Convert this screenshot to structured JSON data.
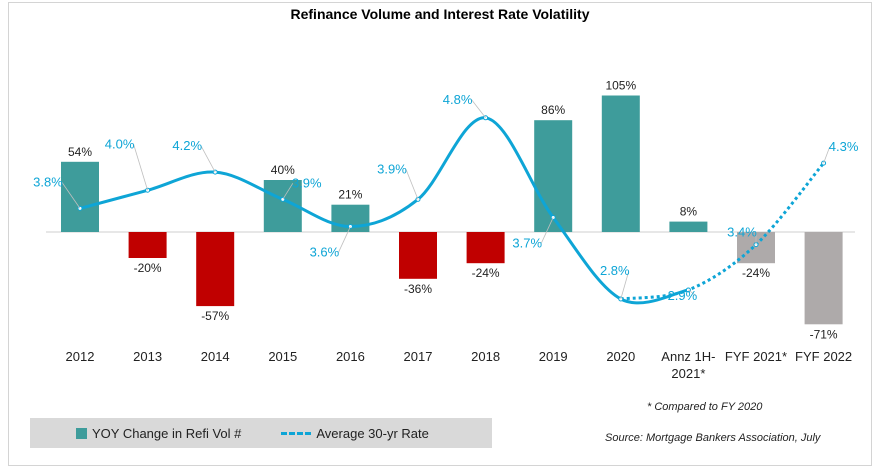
{
  "chart_data": {
    "type": "bar+line",
    "title": "Refinance Volume and Interest Rate Volatility",
    "categories": [
      "2012",
      "2013",
      "2014",
      "2015",
      "2016",
      "2017",
      "2018",
      "2019",
      "2020",
      "Annz 1H-\n2021*",
      "FYF 2021*",
      "FYF 2022"
    ],
    "series": [
      {
        "name": "YOY Change in Refi Vol #",
        "type": "bar",
        "axis": "left",
        "values": [
          54,
          -20,
          -57,
          40,
          21,
          -36,
          -24,
          86,
          105,
          8,
          -24,
          -71
        ],
        "labels": [
          "54%",
          "-20%",
          "-57%",
          "40%",
          "21%",
          "-36%",
          "-24%",
          "86%",
          "105%",
          "8%",
          "-24%",
          "-71%"
        ],
        "colors": [
          "#3e9c9b",
          "#c00000",
          "#c00000",
          "#3e9c9b",
          "#3e9c9b",
          "#c00000",
          "#c00000",
          "#3e9c9b",
          "#3e9c9b",
          "#3e9c9b",
          "#aeaaaa",
          "#aeaaaa"
        ]
      },
      {
        "name": "Average 30-yr Rate",
        "type": "line",
        "axis": "right",
        "color": "#0ea5d6",
        "points": [
          {
            "x": 0,
            "y": 3.8,
            "label": "3.8%"
          },
          {
            "x": 1,
            "y": 4.0,
            "label": "4.0%"
          },
          {
            "x": 2,
            "y": 4.2,
            "label": "4.2%"
          },
          {
            "x": 3,
            "y": 3.9,
            "label": "3.9%"
          },
          {
            "x": 4,
            "y": 3.6,
            "label": "3.6%"
          },
          {
            "x": 5,
            "y": 3.9,
            "label": "3.9%"
          },
          {
            "x": 6,
            "y": 4.8,
            "label": "4.8%"
          },
          {
            "x": 7,
            "y": 3.7,
            "label": "3.7%"
          },
          {
            "x": 8,
            "y": 2.8,
            "label": "2.8%"
          },
          {
            "x": 9,
            "y": 2.9,
            "label": "2.9%"
          },
          {
            "x": 10,
            "y": 3.4,
            "label": "3.4%"
          },
          {
            "x": 11,
            "y": 4.3,
            "label": "4.3%"
          }
        ],
        "solid_through_index": 9
      }
    ],
    "grid": false
  },
  "legend": {
    "bar_label": "YOY Change in Refi Vol #",
    "line_label": "Average 30-yr Rate"
  },
  "notes": {
    "footnote": "* Compared to FY 2020",
    "source": "Source: Mortgage Bankers Association, July"
  }
}
